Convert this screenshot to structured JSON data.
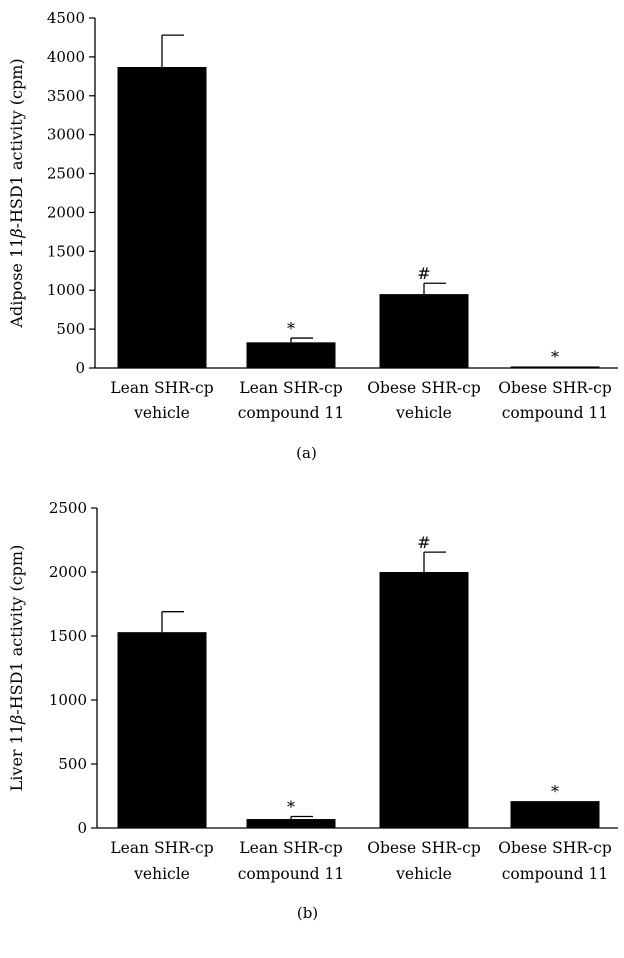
{
  "chart_data": [
    {
      "type": "bar",
      "panel_label": "(a)",
      "ylabel": "Adipose 11β-HSD1 activity (cpm)",
      "ylabel_parts": [
        "Adipose 11",
        "β",
        "-HSD1 activity (cpm)"
      ],
      "ylim": [
        0,
        4500
      ],
      "yticks": [
        0,
        500,
        1000,
        1500,
        2000,
        2500,
        3000,
        3500,
        4000,
        4500
      ],
      "categories": [
        "Lean SHR-cp vehicle",
        "Lean SHR-cp compound 11",
        "Obese SHR-cp vehicle",
        "Obese SHR-cp compound 11"
      ],
      "category_lines": [
        [
          "Lean SHR-cp",
          "vehicle"
        ],
        [
          "Lean SHR-cp",
          "compound 11"
        ],
        [
          "Obese SHR-cp",
          "vehicle"
        ],
        [
          "Obese SHR-cp",
          "compound 11"
        ]
      ],
      "values": [
        3870,
        330,
        950,
        20
      ],
      "error_upper": [
        4280,
        385,
        1090,
        20
      ],
      "annotations": [
        "",
        "*",
        "#",
        "*"
      ],
      "bar_color": "#000000"
    },
    {
      "type": "bar",
      "panel_label": "(b)",
      "ylabel": "Liver 11β-HSD1 activity (cpm)",
      "ylabel_parts": [
        "Liver 11",
        "β",
        "-HSD1 activity (cpm)"
      ],
      "ylim": [
        0,
        2500
      ],
      "yticks": [
        0,
        500,
        1000,
        1500,
        2000,
        2500
      ],
      "categories": [
        "Lean SHR-cp vehicle",
        "Lean SHR-cp compound 11",
        "Obese SHR-cp vehicle",
        "Obese SHR-cp compound 11"
      ],
      "category_lines": [
        [
          "Lean SHR-cp",
          "vehicle"
        ],
        [
          "Lean SHR-cp",
          "compound 11"
        ],
        [
          "Obese SHR-cp",
          "vehicle"
        ],
        [
          "Obese SHR-cp",
          "compound 11"
        ]
      ],
      "values": [
        1530,
        70,
        2000,
        210
      ],
      "error_upper": [
        1690,
        90,
        2155,
        210
      ],
      "annotations": [
        "",
        "*",
        "#",
        "*"
      ],
      "bar_color": "#000000"
    }
  ]
}
